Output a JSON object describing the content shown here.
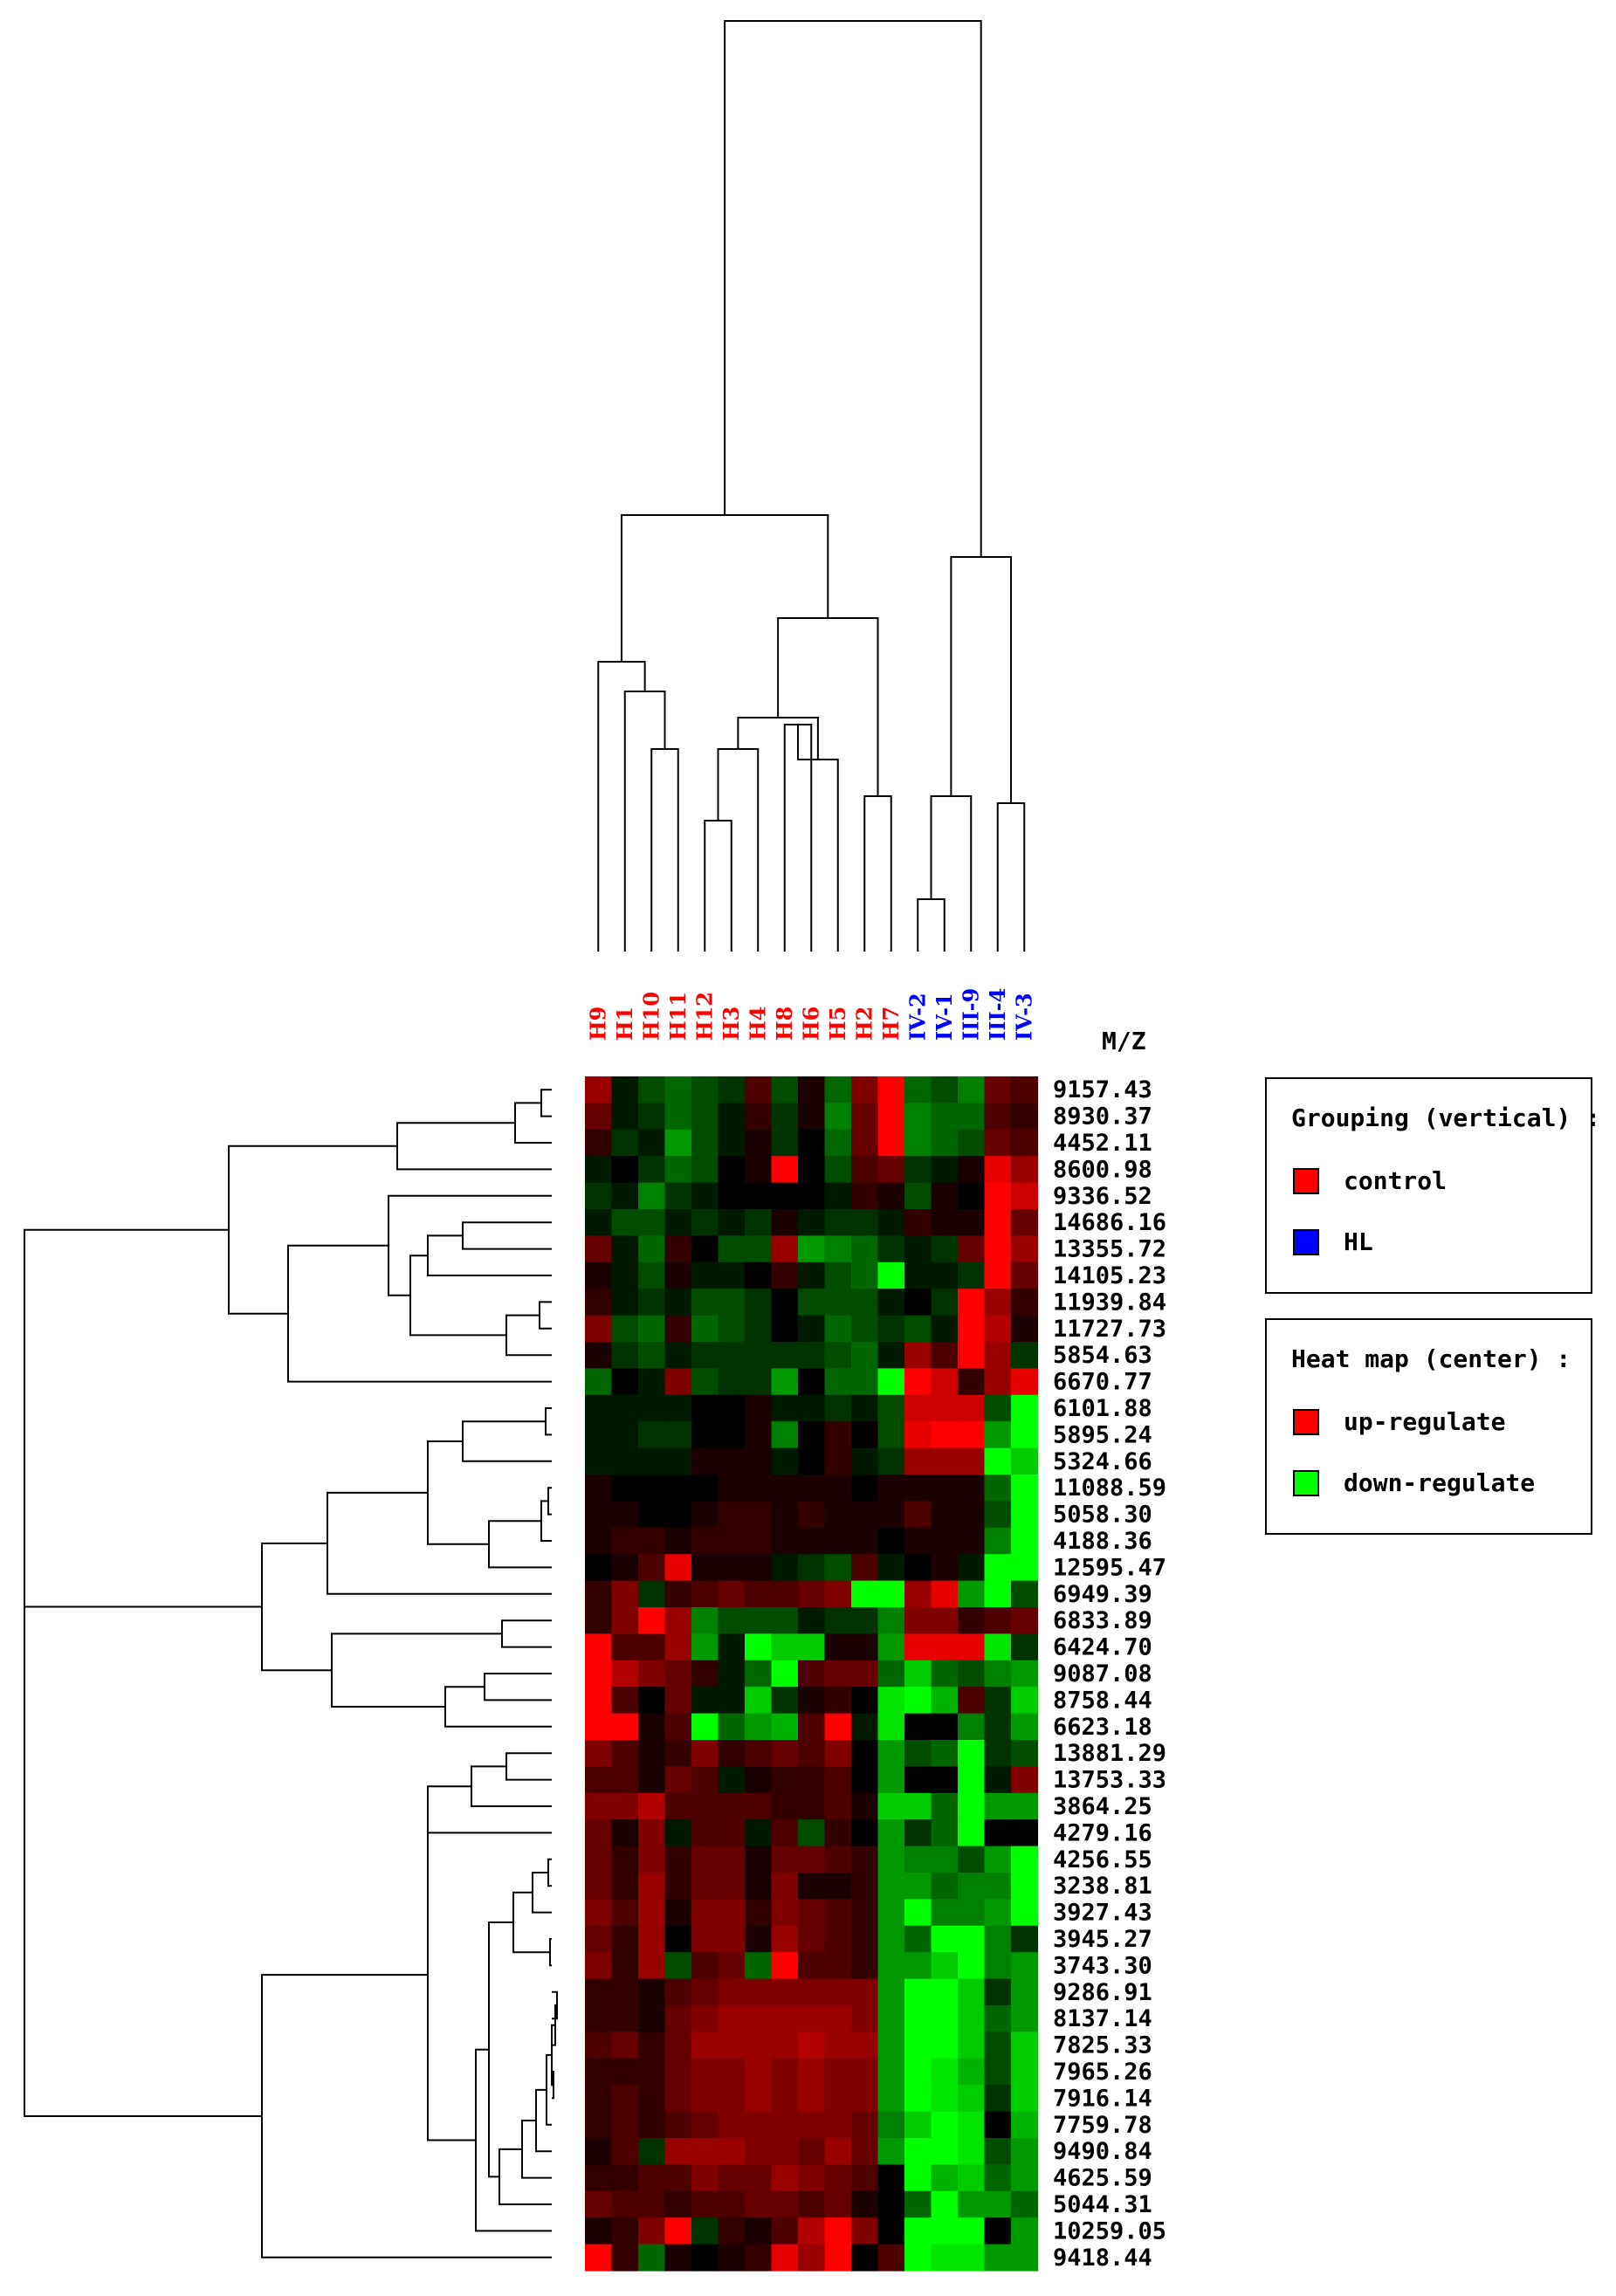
{
  "chart_data": {
    "type": "heatmap",
    "title": "",
    "columns": [
      {
        "label": "H9",
        "group": "control"
      },
      {
        "label": "H1",
        "group": "control"
      },
      {
        "label": "H10",
        "group": "control"
      },
      {
        "label": "H11",
        "group": "control"
      },
      {
        "label": "H12",
        "group": "control"
      },
      {
        "label": "H3",
        "group": "control"
      },
      {
        "label": "H4",
        "group": "control"
      },
      {
        "label": "H8",
        "group": "control"
      },
      {
        "label": "H6",
        "group": "control"
      },
      {
        "label": "H5",
        "group": "control"
      },
      {
        "label": "H2",
        "group": "control"
      },
      {
        "label": "H7",
        "group": "control"
      },
      {
        "label": "IV-2",
        "group": "HL"
      },
      {
        "label": "IV-1",
        "group": "HL"
      },
      {
        "label": "III-9",
        "group": "HL"
      },
      {
        "label": "III-4",
        "group": "HL"
      },
      {
        "label": "IV-3",
        "group": "HL"
      }
    ],
    "row_header": "M/Z",
    "rows": [
      "9157.43",
      "8930.37",
      "4452.11",
      "8600.98",
      "9336.52",
      "14686.16",
      "13355.72",
      "14105.23",
      "11939.84",
      "11727.73",
      "5854.63",
      "6670.77",
      "6101.88",
      "5895.24",
      "5324.66",
      "11088.59",
      "5058.30",
      "4188.36",
      "12595.47",
      "6949.39",
      "6833.89",
      "6424.70",
      "9087.08",
      "8758.44",
      "6623.18",
      "13881.29",
      "13753.33",
      "3864.25",
      "4279.16",
      "4256.55",
      "3238.81",
      "3927.43",
      "3945.27",
      "3743.30",
      "9286.91",
      "8137.14",
      "7825.33",
      "7965.26",
      "7916.14",
      "7759.78",
      "9490.84",
      "4625.59",
      "5044.31",
      "10259.05",
      "9418.44"
    ],
    "values": [
      [
        0.6,
        -0.1,
        -0.3,
        -0.4,
        -0.3,
        -0.2,
        0.3,
        -0.3,
        0.1,
        -0.4,
        0.5,
        1.0,
        -0.4,
        -0.3,
        -0.5,
        0.4,
        0.3
      ],
      [
        0.4,
        -0.1,
        -0.2,
        -0.4,
        -0.3,
        -0.1,
        0.2,
        -0.2,
        0.1,
        -0.5,
        0.4,
        1.0,
        -0.5,
        -0.4,
        -0.4,
        0.3,
        0.2
      ],
      [
        0.2,
        -0.2,
        -0.1,
        -0.6,
        -0.3,
        -0.1,
        0.1,
        -0.2,
        0.0,
        -0.4,
        0.4,
        1.0,
        -0.5,
        -0.4,
        -0.3,
        0.4,
        0.3
      ],
      [
        -0.1,
        0.0,
        -0.2,
        -0.4,
        -0.3,
        0.0,
        0.1,
        1.2,
        0.0,
        -0.3,
        0.3,
        0.4,
        -0.2,
        -0.1,
        0.1,
        0.9,
        0.6
      ],
      [
        -0.2,
        -0.1,
        -0.5,
        -0.2,
        -0.1,
        0.0,
        0.0,
        0.0,
        0.0,
        -0.1,
        0.2,
        0.1,
        -0.3,
        0.1,
        0.0,
        1.0,
        0.8
      ],
      [
        -0.1,
        -0.3,
        -0.3,
        -0.1,
        -0.2,
        -0.1,
        -0.2,
        0.1,
        -0.1,
        -0.2,
        -0.2,
        -0.1,
        0.2,
        0.1,
        0.1,
        1.0,
        0.4
      ],
      [
        0.4,
        -0.1,
        -0.4,
        0.2,
        0.0,
        -0.3,
        -0.3,
        0.6,
        -0.6,
        -0.5,
        -0.4,
        -0.2,
        -0.1,
        -0.2,
        0.4,
        1.0,
        0.6
      ],
      [
        0.1,
        -0.1,
        -0.3,
        0.1,
        -0.1,
        -0.1,
        0.0,
        0.2,
        -0.1,
        -0.3,
        -0.4,
        -1.2,
        -0.1,
        -0.1,
        -0.2,
        1.0,
        0.4
      ],
      [
        0.2,
        -0.1,
        -0.2,
        -0.1,
        -0.3,
        -0.3,
        -0.2,
        0.0,
        -0.3,
        -0.3,
        -0.3,
        -0.1,
        0.0,
        -0.2,
        1.0,
        0.6,
        0.2
      ],
      [
        0.5,
        -0.3,
        -0.4,
        0.2,
        -0.4,
        -0.3,
        -0.2,
        0.0,
        -0.1,
        -0.4,
        -0.3,
        -0.2,
        -0.3,
        -0.1,
        1.0,
        0.7,
        0.1
      ],
      [
        0.1,
        -0.2,
        -0.3,
        -0.1,
        -0.2,
        -0.2,
        -0.2,
        -0.2,
        -0.2,
        -0.3,
        -0.4,
        -0.1,
        0.6,
        0.3,
        1.0,
        0.6,
        -0.2
      ],
      [
        -0.4,
        0.0,
        -0.1,
        0.5,
        -0.3,
        -0.2,
        -0.2,
        -0.6,
        0.0,
        -0.4,
        -0.4,
        -1.0,
        1.0,
        0.8,
        0.2,
        0.6,
        0.9
      ],
      [
        -0.1,
        -0.1,
        -0.1,
        -0.1,
        0.0,
        0.0,
        0.1,
        -0.1,
        -0.1,
        -0.2,
        -0.1,
        -0.3,
        0.8,
        0.8,
        0.8,
        -0.3,
        -1.0
      ],
      [
        -0.1,
        -0.1,
        -0.2,
        -0.2,
        0.0,
        0.0,
        0.1,
        -0.5,
        0.0,
        0.2,
        0.0,
        -0.3,
        0.9,
        1.0,
        1.0,
        -0.6,
        -1.0
      ],
      [
        -0.1,
        -0.1,
        -0.1,
        -0.1,
        0.1,
        0.1,
        0.1,
        -0.1,
        0.0,
        0.2,
        -0.1,
        -0.2,
        0.6,
        0.6,
        0.6,
        -1.0,
        -0.8
      ],
      [
        0.1,
        0.0,
        0.0,
        0.0,
        0.0,
        0.1,
        0.1,
        0.1,
        0.1,
        0.1,
        0.0,
        0.1,
        0.1,
        0.1,
        0.1,
        -0.4,
        -1.0
      ],
      [
        0.1,
        0.1,
        0.0,
        0.0,
        0.1,
        0.2,
        0.2,
        0.1,
        0.2,
        0.1,
        0.1,
        0.1,
        0.3,
        0.1,
        0.1,
        -0.3,
        -1.0
      ],
      [
        0.1,
        0.2,
        0.2,
        0.1,
        0.2,
        0.2,
        0.2,
        0.1,
        0.1,
        0.1,
        0.1,
        0.0,
        0.1,
        0.1,
        0.1,
        -0.5,
        -1.0
      ],
      [
        0.0,
        0.1,
        0.3,
        0.9,
        0.1,
        0.1,
        0.1,
        -0.1,
        -0.2,
        -0.3,
        0.3,
        -0.1,
        0.0,
        0.1,
        -0.1,
        -1.0,
        -1.2
      ],
      [
        0.2,
        0.5,
        -0.2,
        0.2,
        0.3,
        0.4,
        0.3,
        0.3,
        0.4,
        0.5,
        -1.0,
        -1.0,
        0.6,
        0.9,
        -0.6,
        -1.0,
        -0.3
      ],
      [
        0.2,
        0.5,
        1.0,
        0.6,
        -0.5,
        -0.3,
        -0.3,
        -0.3,
        -0.1,
        -0.2,
        -0.2,
        -0.5,
        0.5,
        0.5,
        0.2,
        0.3,
        0.4
      ],
      [
        1.0,
        0.3,
        0.3,
        0.6,
        -0.6,
        -0.1,
        -1.0,
        -0.8,
        -0.8,
        0.1,
        0.1,
        -0.6,
        0.9,
        0.9,
        0.9,
        -0.9,
        -0.2
      ],
      [
        1.0,
        0.7,
        0.5,
        0.4,
        0.2,
        -0.1,
        -0.4,
        -1.0,
        0.3,
        0.4,
        0.4,
        -0.4,
        -0.8,
        -0.4,
        -0.3,
        -0.5,
        -0.6
      ],
      [
        1.0,
        0.3,
        0.0,
        0.4,
        -0.1,
        -0.1,
        -0.8,
        -0.2,
        0.1,
        0.2,
        0.0,
        -0.9,
        -1.0,
        -0.7,
        0.3,
        -0.2,
        -0.8
      ],
      [
        1.0,
        1.0,
        0.1,
        0.3,
        -1.2,
        -0.4,
        -0.6,
        -0.7,
        0.3,
        1.0,
        -0.1,
        -0.9,
        0.0,
        0.0,
        -0.5,
        -0.2,
        -0.6
      ],
      [
        0.5,
        0.3,
        0.1,
        0.2,
        0.5,
        0.2,
        0.3,
        0.4,
        0.3,
        0.5,
        0.0,
        -0.6,
        -0.3,
        -0.4,
        -1.0,
        -0.2,
        -0.3
      ],
      [
        0.3,
        0.3,
        0.1,
        0.4,
        0.3,
        -0.1,
        0.1,
        0.2,
        0.2,
        0.3,
        0.0,
        -0.6,
        0.0,
        0.0,
        -1.0,
        -0.1,
        0.5
      ],
      [
        0.5,
        0.5,
        0.7,
        0.3,
        0.3,
        0.3,
        0.3,
        0.2,
        0.2,
        0.3,
        0.1,
        -0.8,
        -0.8,
        -0.4,
        -1.0,
        -0.6,
        -0.6
      ],
      [
        0.4,
        0.1,
        0.5,
        -0.1,
        0.3,
        0.3,
        -0.1,
        0.3,
        -0.3,
        0.2,
        0.0,
        -0.6,
        -0.2,
        -0.4,
        -1.0,
        0.0,
        0.0
      ],
      [
        0.4,
        0.2,
        0.5,
        0.2,
        0.4,
        0.4,
        0.1,
        0.4,
        0.4,
        0.3,
        0.2,
        -0.6,
        -0.5,
        -0.5,
        -0.3,
        -0.6,
        -1.0
      ],
      [
        0.4,
        0.2,
        0.6,
        0.2,
        0.4,
        0.4,
        0.1,
        0.5,
        0.1,
        0.1,
        0.2,
        -0.6,
        -0.6,
        -0.4,
        -0.5,
        -0.5,
        -1.0
      ],
      [
        0.5,
        0.3,
        0.6,
        0.1,
        0.5,
        0.5,
        0.2,
        0.5,
        0.4,
        0.3,
        0.2,
        -0.6,
        -1.0,
        -0.5,
        -0.5,
        -0.6,
        -1.0
      ],
      [
        0.4,
        0.2,
        0.6,
        0.0,
        0.5,
        0.5,
        0.1,
        0.6,
        0.4,
        0.3,
        0.2,
        -0.6,
        -0.4,
        -1.0,
        -1.0,
        -0.5,
        -0.2
      ],
      [
        0.5,
        0.2,
        0.6,
        -0.3,
        0.3,
        0.4,
        -0.4,
        1.0,
        0.3,
        0.3,
        0.2,
        -0.6,
        -0.6,
        -0.8,
        -1.0,
        -0.5,
        -0.6
      ],
      [
        0.2,
        0.2,
        0.1,
        0.3,
        0.4,
        0.5,
        0.5,
        0.5,
        0.5,
        0.5,
        0.5,
        -0.6,
        -1.0,
        -1.0,
        -0.8,
        -0.2,
        -0.6
      ],
      [
        0.2,
        0.2,
        0.1,
        0.4,
        0.5,
        0.6,
        0.6,
        0.6,
        0.6,
        0.6,
        0.5,
        -0.6,
        -1.0,
        -1.0,
        -0.8,
        -0.4,
        -0.6
      ],
      [
        0.3,
        0.4,
        0.2,
        0.4,
        0.6,
        0.6,
        0.6,
        0.6,
        0.7,
        0.6,
        0.6,
        -0.6,
        -1.0,
        -1.0,
        -0.8,
        -0.3,
        -0.8
      ],
      [
        0.2,
        0.2,
        0.2,
        0.4,
        0.5,
        0.5,
        0.6,
        0.5,
        0.6,
        0.5,
        0.5,
        -0.6,
        -1.0,
        -0.9,
        -0.7,
        -0.3,
        -0.8
      ],
      [
        0.2,
        0.3,
        0.2,
        0.4,
        0.5,
        0.5,
        0.6,
        0.5,
        0.6,
        0.5,
        0.5,
        -0.6,
        -1.0,
        -0.9,
        -0.8,
        -0.2,
        -0.8
      ],
      [
        0.2,
        0.3,
        0.2,
        0.3,
        0.4,
        0.5,
        0.5,
        0.5,
        0.5,
        0.5,
        0.4,
        -0.5,
        -0.8,
        -1.0,
        -0.9,
        0.0,
        -0.7
      ],
      [
        0.1,
        0.3,
        -0.2,
        0.6,
        0.6,
        0.6,
        0.5,
        0.5,
        0.4,
        0.6,
        0.4,
        -0.6,
        -1.0,
        -1.0,
        -0.9,
        -0.3,
        -0.6
      ],
      [
        0.2,
        0.2,
        0.3,
        0.3,
        0.5,
        0.4,
        0.4,
        0.6,
        0.5,
        0.4,
        0.3,
        0.0,
        -1.0,
        -0.7,
        -0.8,
        -0.4,
        -0.6
      ],
      [
        0.4,
        0.3,
        0.3,
        0.2,
        0.3,
        0.3,
        0.4,
        0.4,
        0.3,
        0.4,
        0.1,
        0.0,
        -0.4,
        -1.0,
        -0.6,
        -0.6,
        -0.4
      ],
      [
        0.1,
        0.2,
        0.5,
        1.0,
        -0.2,
        0.2,
        0.1,
        0.3,
        0.7,
        1.0,
        0.5,
        0.0,
        -1.0,
        -1.0,
        -1.0,
        0.0,
        -0.6
      ],
      [
        1.0,
        0.2,
        -0.4,
        0.1,
        0.0,
        0.1,
        0.2,
        0.9,
        0.6,
        1.0,
        0.0,
        0.3,
        -1.0,
        -0.9,
        -0.9,
        -0.6,
        -0.6
      ]
    ],
    "color_scale": {
      "up": "#ff0000",
      "mid": "#000000",
      "down": "#00ff00"
    },
    "group_colors": {
      "control": "#ff0000",
      "HL": "#0000ff"
    },
    "legends": [
      {
        "title": "Grouping (vertical) :",
        "entries": [
          {
            "label": "control",
            "color": "#ff0000"
          },
          {
            "label": "HL",
            "color": "#0000ff"
          }
        ]
      },
      {
        "title": "Heat map (center) :",
        "entries": [
          {
            "label": "up-regulate",
            "color": "#ff0000"
          },
          {
            "label": "down-regulate",
            "color": "#00ff00"
          }
        ]
      }
    ]
  }
}
